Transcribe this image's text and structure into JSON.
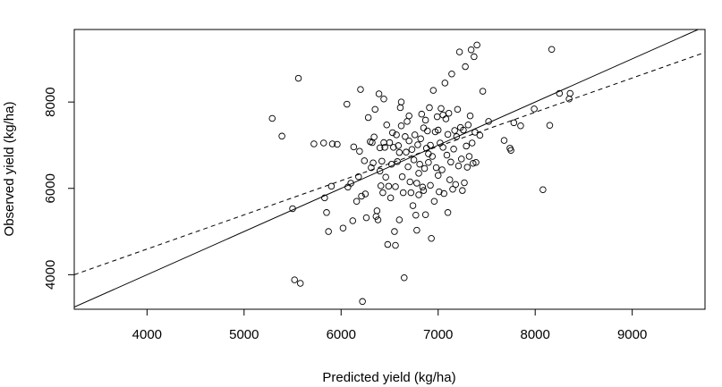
{
  "chart_data": {
    "type": "scatter",
    "title": "",
    "xlabel": "Predicted yield (kg/ha)",
    "ylabel": "Observed yield (kg/ha)",
    "xlim": [
      3250,
      9750
    ],
    "ylim": [
      3200,
      9680
    ],
    "xticks": [
      4000,
      5000,
      6000,
      7000,
      8000,
      9000
    ],
    "yticks": [
      4000,
      6000,
      8000
    ],
    "grid": false,
    "legend": "none",
    "reference_lines": [
      {
        "name": "1:1 line",
        "style": "solid",
        "points": [
          [
            3250,
            3250
          ],
          [
            9750,
            9750
          ]
        ]
      },
      {
        "name": "regression line",
        "style": "dashed",
        "points": [
          [
            3250,
            4000
          ],
          [
            9750,
            9150
          ]
        ]
      }
    ],
    "points": [
      [
        5290,
        7620
      ],
      [
        5390,
        7210
      ],
      [
        5500,
        5530
      ],
      [
        5520,
        3880
      ],
      [
        5560,
        8550
      ],
      [
        5580,
        3800
      ],
      [
        5720,
        7030
      ],
      [
        5820,
        7050
      ],
      [
        5830,
        5780
      ],
      [
        5850,
        5440
      ],
      [
        5870,
        5000
      ],
      [
        5900,
        6050
      ],
      [
        5960,
        7020
      ],
      [
        6020,
        5080
      ],
      [
        6060,
        7950
      ],
      [
        6070,
        6030
      ],
      [
        6100,
        6120
      ],
      [
        6130,
        6960
      ],
      [
        6160,
        5700
      ],
      [
        6180,
        6270
      ],
      [
        6190,
        6860
      ],
      [
        6200,
        8290
      ],
      [
        6210,
        5820
      ],
      [
        6220,
        3380
      ],
      [
        6240,
        6640
      ],
      [
        6250,
        5870
      ],
      [
        6260,
        5320
      ],
      [
        6280,
        7640
      ],
      [
        6300,
        7080
      ],
      [
        6310,
        6480
      ],
      [
        6320,
        7060
      ],
      [
        6340,
        7190
      ],
      [
        6350,
        7830
      ],
      [
        6360,
        5350
      ],
      [
        6370,
        5480
      ],
      [
        6380,
        5270
      ],
      [
        6390,
        8190
      ],
      [
        6400,
        6940
      ],
      [
        6410,
        6060
      ],
      [
        6420,
        6630
      ],
      [
        6430,
        5900
      ],
      [
        6440,
        7060
      ],
      [
        6450,
        6950
      ],
      [
        6460,
        6260
      ],
      [
        6470,
        7470
      ],
      [
        6480,
        4700
      ],
      [
        6490,
        6050
      ],
      [
        6500,
        7060
      ],
      [
        6510,
        5780
      ],
      [
        6520,
        6560
      ],
      [
        6530,
        7290
      ],
      [
        6540,
        6950
      ],
      [
        6550,
        5000
      ],
      [
        6560,
        4680
      ],
      [
        6570,
        7240
      ],
      [
        6580,
        6620
      ],
      [
        6590,
        6990
      ],
      [
        6600,
        5270
      ],
      [
        6610,
        7870
      ],
      [
        6620,
        8000
      ],
      [
        6630,
        6270
      ],
      [
        6640,
        5900
      ],
      [
        6650,
        3930
      ],
      [
        6660,
        7200
      ],
      [
        6670,
        6840
      ],
      [
        6680,
        7550
      ],
      [
        6690,
        6500
      ],
      [
        6700,
        7680
      ],
      [
        6710,
        6150
      ],
      [
        6720,
        5900
      ],
      [
        6730,
        6900
      ],
      [
        6740,
        5600
      ],
      [
        6750,
        6660
      ],
      [
        6760,
        7240
      ],
      [
        6770,
        5380
      ],
      [
        6780,
        6120
      ],
      [
        6790,
        7010
      ],
      [
        6800,
        6350
      ],
      [
        6810,
        6560
      ],
      [
        6820,
        7150
      ],
      [
        6830,
        7720
      ],
      [
        6840,
        6030
      ],
      [
        6850,
        5950
      ],
      [
        6860,
        6460
      ],
      [
        6870,
        7580
      ],
      [
        6880,
        6930
      ],
      [
        6890,
        7330
      ],
      [
        6900,
        6600
      ],
      [
        6910,
        7870
      ],
      [
        6920,
        6070
      ],
      [
        6930,
        4840
      ],
      [
        6940,
        6740
      ],
      [
        6950,
        8270
      ],
      [
        6960,
        5700
      ],
      [
        6970,
        7310
      ],
      [
        6980,
        6480
      ],
      [
        6990,
        7660
      ],
      [
        7000,
        6300
      ],
      [
        7010,
        5920
      ],
      [
        7020,
        7050
      ],
      [
        7030,
        7850
      ],
      [
        7040,
        6430
      ],
      [
        7050,
        6950
      ],
      [
        7060,
        5880
      ],
      [
        7070,
        8440
      ],
      [
        7080,
        7610
      ],
      [
        7090,
        6770
      ],
      [
        7100,
        5440
      ],
      [
        7110,
        7740
      ],
      [
        7120,
        6200
      ],
      [
        7130,
        6610
      ],
      [
        7140,
        8650
      ],
      [
        7150,
        5980
      ],
      [
        7160,
        6910
      ],
      [
        7170,
        7340
      ],
      [
        7180,
        6090
      ],
      [
        7190,
        7200
      ],
      [
        7200,
        7830
      ],
      [
        7210,
        6520
      ],
      [
        7220,
        9160
      ],
      [
        7230,
        7410
      ],
      [
        7240,
        6680
      ],
      [
        7250,
        5950
      ],
      [
        7260,
        7350
      ],
      [
        7270,
        6130
      ],
      [
        7280,
        8820
      ],
      [
        7290,
        6980
      ],
      [
        7300,
        6490
      ],
      [
        7310,
        7470
      ],
      [
        7320,
        6740
      ],
      [
        7330,
        7680
      ],
      [
        7340,
        9210
      ],
      [
        7350,
        7050
      ],
      [
        7360,
        6580
      ],
      [
        7370,
        9050
      ],
      [
        7380,
        7300
      ],
      [
        7390,
        6600
      ],
      [
        7400,
        9320
      ],
      [
        7430,
        7230
      ],
      [
        7460,
        8250
      ],
      [
        7520,
        7550
      ],
      [
        7680,
        7110
      ],
      [
        7740,
        6930
      ],
      [
        7750,
        6880
      ],
      [
        7780,
        7520
      ],
      [
        7850,
        7450
      ],
      [
        7990,
        7840
      ],
      [
        8080,
        5970
      ],
      [
        8150,
        7460
      ],
      [
        8170,
        9220
      ],
      [
        8250,
        8200
      ],
      [
        8350,
        8070
      ],
      [
        8360,
        8200
      ],
      [
        5910,
        7030
      ],
      [
        6120,
        5250
      ],
      [
        6330,
        6590
      ],
      [
        6560,
        6040
      ],
      [
        6780,
        5030
      ],
      [
        6870,
        5390
      ],
      [
        6920,
        7000
      ],
      [
        7000,
        7350
      ],
      [
        7100,
        7250
      ],
      [
        6440,
        8070
      ],
      [
        6600,
        6830
      ],
      [
        6700,
        7100
      ],
      [
        6800,
        5850
      ],
      [
        6900,
        6800
      ],
      [
        7050,
        7700
      ],
      [
        6400,
        6400
      ],
      [
        6620,
        7450
      ],
      [
        6850,
        7400
      ]
    ]
  }
}
